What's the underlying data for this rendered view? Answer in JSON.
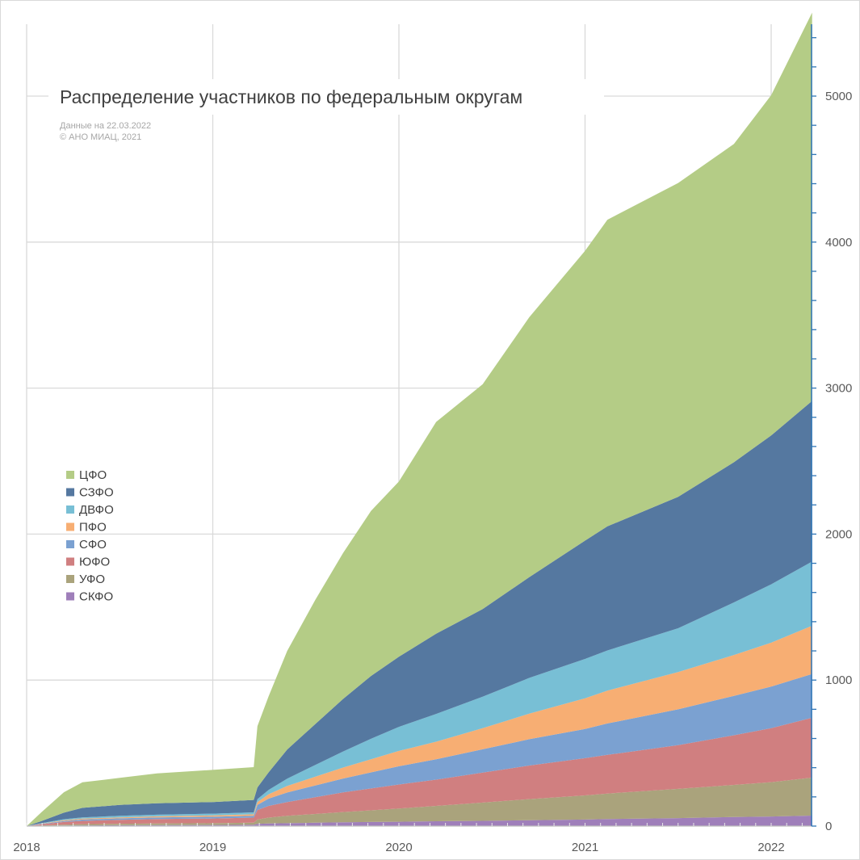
{
  "chart_data": {
    "type": "area",
    "stacked": true,
    "title": "Распределение участников по федеральным округам",
    "subtitle_lines": [
      "Данные на 22.03.2022",
      "© АНО МИАЦ, 2021"
    ],
    "xlabel": "",
    "ylabel": "",
    "x_ticks": [
      "2018",
      "2019",
      "2020",
      "2021",
      "2022"
    ],
    "x_range": [
      2018.0,
      2022.22
    ],
    "y_ticks": [
      "0",
      "1000",
      "2000",
      "3000",
      "4000",
      "5000"
    ],
    "ylim": [
      0,
      5500
    ],
    "y_axis_side": "right",
    "grid": true,
    "legend_position": "left",
    "x": [
      2018.0,
      2018.08,
      2018.2,
      2018.3,
      2018.5,
      2018.7,
      2019.0,
      2019.22,
      2019.24,
      2019.3,
      2019.4,
      2019.55,
      2019.7,
      2019.85,
      2020.0,
      2020.2,
      2020.45,
      2020.7,
      2021.0,
      2021.12,
      2021.5,
      2021.8,
      2022.0,
      2022.22
    ],
    "series": [
      {
        "name": "СКФО",
        "color": "#9f7fba",
        "values": [
          0,
          2,
          4,
          5,
          6,
          7,
          8,
          9,
          15,
          18,
          20,
          23,
          26,
          28,
          30,
          33,
          36,
          40,
          45,
          48,
          55,
          62,
          66,
          72
        ]
      },
      {
        "name": "УФО",
        "color": "#aaa37c",
        "values": [
          0,
          3,
          6,
          8,
          10,
          11,
          12,
          14,
          30,
          40,
          50,
          60,
          70,
          80,
          90,
          105,
          125,
          145,
          165,
          175,
          200,
          220,
          235,
          260
        ]
      },
      {
        "name": "ЮФО",
        "color": "#d07f80",
        "values": [
          0,
          7,
          18,
          23,
          27,
          30,
          32,
          35,
          65,
          80,
          95,
          115,
          135,
          150,
          165,
          180,
          205,
          230,
          255,
          265,
          300,
          340,
          370,
          410
        ]
      },
      {
        "name": "СФО",
        "color": "#7ba1d1",
        "values": [
          0,
          3,
          7,
          9,
          10,
          11,
          12,
          13,
          35,
          50,
          65,
          80,
          95,
          110,
          125,
          140,
          160,
          180,
          200,
          215,
          245,
          270,
          285,
          300
        ]
      },
      {
        "name": "ПФО",
        "color": "#f7ae73",
        "values": [
          0,
          2,
          5,
          6,
          7,
          8,
          9,
          10,
          20,
          30,
          45,
          60,
          75,
          90,
          105,
          120,
          145,
          175,
          210,
          225,
          255,
          280,
          300,
          330
        ]
      },
      {
        "name": "ДВФО",
        "color": "#78bfd5",
        "values": [
          0,
          3,
          7,
          9,
          10,
          11,
          12,
          13,
          20,
          30,
          50,
          80,
          110,
          140,
          165,
          190,
          215,
          245,
          270,
          275,
          300,
          360,
          400,
          440
        ]
      },
      {
        "name": "СЗФО",
        "color": "#5578a0",
        "values": [
          0,
          15,
          45,
          65,
          75,
          78,
          80,
          85,
          80,
          120,
          200,
          280,
          360,
          430,
          480,
          550,
          600,
          690,
          810,
          850,
          900,
          960,
          1020,
          1100
        ]
      },
      {
        "name": "ЦФО",
        "color": "#b4cc86",
        "values": [
          0,
          60,
          140,
          175,
          185,
          205,
          220,
          225,
          420,
          520,
          675,
          850,
          1000,
          1130,
          1200,
          1450,
          1540,
          1780,
          1985,
          2100,
          2150,
          2180,
          2330,
          2660
        ]
      }
    ]
  }
}
